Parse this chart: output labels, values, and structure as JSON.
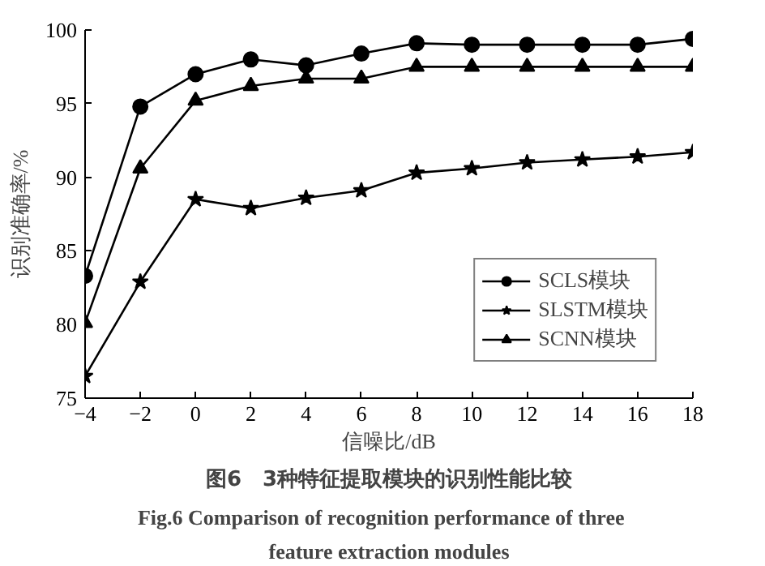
{
  "chart_data": {
    "type": "line",
    "title": "图6　3种特征提取模块的识别性能比较",
    "xlabel": "信噪比/dB",
    "ylabel": "识别准确率/%",
    "annotations": [
      "Fig.6    Comparison of recognition performance of three",
      "feature extraction modules"
    ],
    "x": [
      -4,
      -2,
      0,
      2,
      4,
      6,
      8,
      10,
      12,
      14,
      16,
      18
    ],
    "xlim": [
      -4,
      18
    ],
    "xticks": [
      -4,
      -2,
      0,
      2,
      4,
      6,
      8,
      10,
      12,
      14,
      16,
      18
    ],
    "ylim": [
      75,
      100
    ],
    "yticks": [
      75,
      80,
      85,
      90,
      95,
      100
    ],
    "grid": false,
    "legend": "bottom right",
    "line_style": "solid",
    "series": [
      {
        "name": "SCLS模块",
        "color": "#000000",
        "marker": "circle",
        "values": [
          83.3,
          94.8,
          97.0,
          98.0,
          97.6,
          98.4,
          99.1,
          99.0,
          99.0,
          99.0,
          99.0,
          99.4
        ]
      },
      {
        "name": "SLSTM模块",
        "color": "#000000",
        "marker": "star",
        "values": [
          76.5,
          82.9,
          88.5,
          87.9,
          88.6,
          89.1,
          90.3,
          90.6,
          91.0,
          91.2,
          91.4,
          91.7
        ]
      },
      {
        "name": "SCNN模块",
        "color": "#000000",
        "marker": "triangle",
        "values": [
          80.1,
          90.6,
          95.2,
          96.2,
          96.7,
          96.7,
          97.5,
          97.5,
          97.5,
          97.5,
          97.5,
          97.5
        ]
      }
    ]
  }
}
